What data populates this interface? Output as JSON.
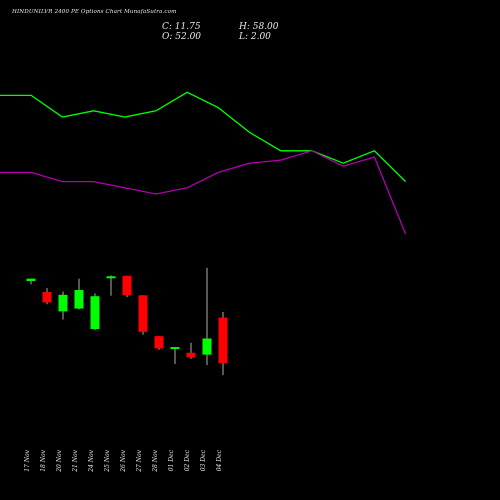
{
  "header": {
    "title": "HINDUNILVR 2400 PE Options Chart MunafaSutra.com",
    "close_label": "C: 11.75",
    "open_label": "O: 52.00",
    "high_label": "H: 58.00",
    "low_label": "L: 2.00"
  },
  "colors": {
    "background": "#000000",
    "up": "#00ff00",
    "down": "#ff0000",
    "line_upper": "#00ff00",
    "line_lower": "#b000b0",
    "text": "#e8e8e8"
  },
  "chart_data": [
    {
      "type": "line",
      "series": [
        {
          "values": [
            45,
            45,
            38,
            40,
            38,
            40,
            46,
            41,
            33,
            27,
            27,
            23,
            27,
            17
          ]
        },
        {
          "values": [
            20,
            20,
            17,
            17,
            15,
            13,
            15,
            20,
            23,
            24,
            27,
            22,
            25,
            0
          ]
        }
      ],
      "ylim": [
        0,
        50
      ]
    },
    {
      "type": "candlestick",
      "categories": [
        "17 Nov",
        "18 Nov",
        "20 Nov",
        "21 Nov",
        "24 Nov",
        "25 Nov",
        "26 Nov",
        "27 Nov",
        "28 Nov",
        "01 Dec",
        "02 Dec",
        "03 Dec",
        "04 Dec"
      ],
      "ohlc": [
        {
          "o": 50.5,
          "h": 53.0,
          "l": 47.0,
          "c": 53.0
        },
        {
          "o": 39.0,
          "h": 43.0,
          "l": 26.0,
          "c": 28.0
        },
        {
          "o": 18.5,
          "h": 39.5,
          "l": 10.0,
          "c": 36.0
        },
        {
          "o": 21.5,
          "h": 53.0,
          "l": 20.5,
          "c": 41.0
        },
        {
          "o": 0.0,
          "h": 37.5,
          "l": -1.0,
          "c": 34.5
        },
        {
          "o": 54.5,
          "h": 56.5,
          "l": 35.0,
          "c": 55.5
        },
        {
          "o": 56.0,
          "h": 56.0,
          "l": 33.5,
          "c": 35.5
        },
        {
          "o": 35.5,
          "h": 35.5,
          "l": -6.0,
          "c": -3.0
        },
        {
          "o": -7.5,
          "h": -7.5,
          "l": -22.0,
          "c": -20.5
        },
        {
          "o": -21.0,
          "h": -19.0,
          "l": -37.0,
          "c": -19.0
        },
        {
          "o": -25.0,
          "h": -14.5,
          "l": -31.5,
          "c": -30.0
        },
        {
          "o": -27.0,
          "h": 64.5,
          "l": -38.0,
          "c": -10.0
        },
        {
          "o": 12.0,
          "h": 18.0,
          "l": -48.5,
          "c": -36.0
        }
      ]
    }
  ]
}
